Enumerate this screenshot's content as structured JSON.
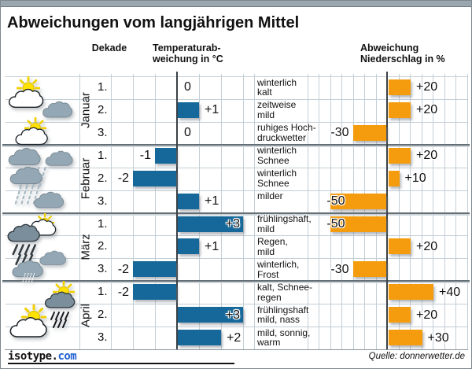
{
  "title": "Abweichungen vom langjährigen Mittel",
  "headers": {
    "decade": "Dekade",
    "temperature_line1": "Temperaturab-",
    "temperature_line2": "weichung in °C",
    "precipitation_line1": "Abweichung",
    "precipitation_line2": "Niederschlag in %"
  },
  "footer": {
    "logo_black": "isotype.",
    "logo_blue": "com",
    "source": "Quelle: donnerwetter.de"
  },
  "colors": {
    "temp_bar": "#16689a",
    "precip_bar": "#f49c0d",
    "grid_light": "#c3ced6",
    "zero_line": "#3a4045",
    "month_line": "#646e75",
    "topbar": "#9ba7af",
    "logo_blue": "#1f5fd0"
  },
  "chart_data": {
    "type": "bar",
    "title": "Abweichungen vom langjährigen Mittel",
    "orientation": "horizontal",
    "temp_axis": {
      "label": "Temperaturabweichung in °C",
      "min": -3,
      "max": 3,
      "grid_step": 1
    },
    "precip_axis": {
      "label": "Abweichung Niederschlag in %",
      "min": -70,
      "max": 70,
      "grid_step": 10
    },
    "months": [
      {
        "name": "Januar",
        "icons": [
          "sun-cloud-icon",
          "cloud-icon",
          "sun-cloud-icon"
        ]
      },
      {
        "name": "Februar",
        "icons": [
          "snow-cloud-icon",
          "cloud-icon",
          "snow-cloud-icon",
          "cloud-icon"
        ]
      },
      {
        "name": "März",
        "icons": [
          "sun-cloud-icon",
          "rain-cloud-icon",
          "cloud-icon",
          "snow-cloud-icon"
        ]
      },
      {
        "name": "April",
        "icons": [
          "sun-rain-cloud-icon",
          "sun-cloud-icon"
        ]
      }
    ],
    "rows": [
      {
        "month": "Januar",
        "decade": "1.",
        "temp": 0,
        "temp_label": "0",
        "weather": [
          "winterlich",
          "kalt"
        ],
        "precip": 20,
        "precip_label": "+20"
      },
      {
        "month": "Januar",
        "decade": "2.",
        "temp": 1,
        "temp_label": "+1",
        "weather": [
          "zeitweise",
          "mild"
        ],
        "precip": 20,
        "precip_label": "+20"
      },
      {
        "month": "Januar",
        "decade": "3.",
        "temp": 0,
        "temp_label": "0",
        "weather": [
          "ruhiges Hoch-",
          "druckwetter"
        ],
        "precip": -30,
        "precip_label": "-30"
      },
      {
        "month": "Februar",
        "decade": "1.",
        "temp": -1,
        "temp_label": "-1",
        "weather": [
          "winterlich",
          "Schnee"
        ],
        "precip": 20,
        "precip_label": "+20"
      },
      {
        "month": "Februar",
        "decade": "2.",
        "temp": -2,
        "temp_label": "-2",
        "weather": [
          "winterlich",
          "Schnee"
        ],
        "precip": 10,
        "precip_label": "+10"
      },
      {
        "month": "Februar",
        "decade": "3.",
        "temp": 1,
        "temp_label": "+1",
        "weather": [
          "milder"
        ],
        "precip": -50,
        "precip_label": "-50"
      },
      {
        "month": "März",
        "decade": "1.",
        "temp": 3,
        "temp_label": "+3",
        "weather": [
          "frühlingshaft,",
          "mild"
        ],
        "precip": -50,
        "precip_label": "-50"
      },
      {
        "month": "März",
        "decade": "2.",
        "temp": 1,
        "temp_label": "+1",
        "weather": [
          "Regen,",
          "mild"
        ],
        "precip": 20,
        "precip_label": "+20"
      },
      {
        "month": "März",
        "decade": "3.",
        "temp": -2,
        "temp_label": "-2",
        "weather": [
          "winterlich,",
          "Frost"
        ],
        "precip": -30,
        "precip_label": "-30"
      },
      {
        "month": "April",
        "decade": "1.",
        "temp": -2,
        "temp_label": "-2",
        "weather": [
          "kalt, Schnee-",
          "regen"
        ],
        "precip": 40,
        "precip_label": "+40"
      },
      {
        "month": "April",
        "decade": "2.",
        "temp": 3,
        "temp_label": "+3",
        "weather": [
          "frühlingshaft",
          "mild, nass"
        ],
        "precip": 20,
        "precip_label": "+20"
      },
      {
        "month": "April",
        "decade": "3.",
        "temp": 2,
        "temp_label": "+2",
        "weather": [
          "mild, sonnig,",
          "warm"
        ],
        "precip": 30,
        "precip_label": "+30"
      }
    ]
  }
}
